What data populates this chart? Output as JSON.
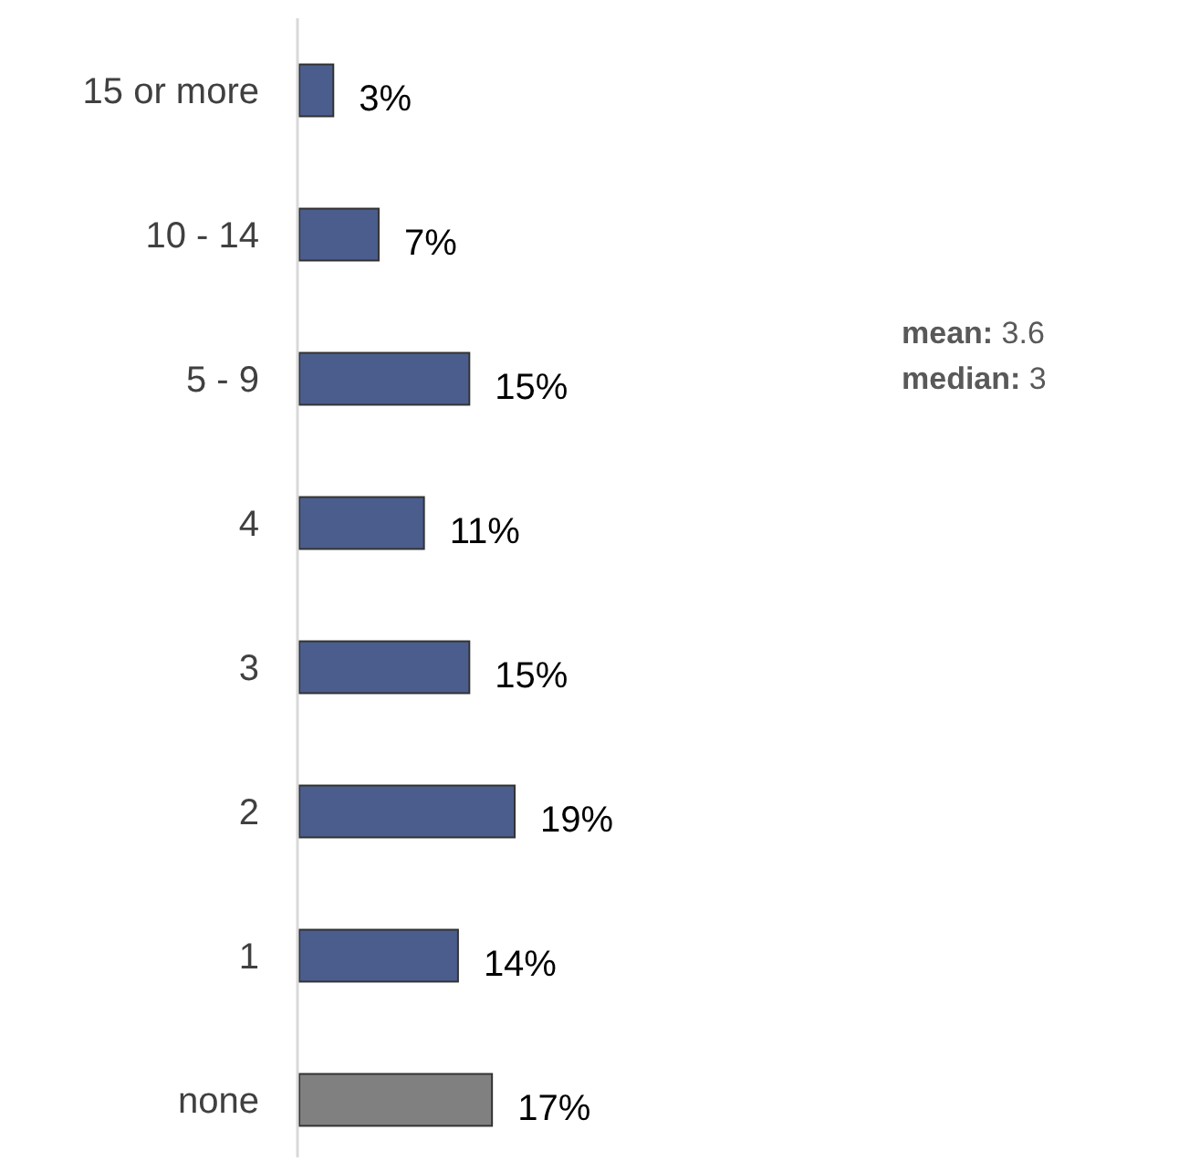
{
  "chart_data": {
    "type": "bar",
    "orientation": "horizontal",
    "categories": [
      "15 or more",
      "10 - 14",
      "5 - 9",
      "4",
      "3",
      "2",
      "1",
      "none"
    ],
    "values": [
      3,
      7,
      15,
      11,
      15,
      19,
      14,
      17
    ],
    "colors": [
      "#4a5d8c",
      "#4a5d8c",
      "#4a5d8c",
      "#4a5d8c",
      "#4a5d8c",
      "#4a5d8c",
      "#4a5d8c",
      "#808080"
    ],
    "data_labels": true,
    "value_labels": [
      "3%",
      "7%",
      "15%",
      "11%",
      "15%",
      "19%",
      "14%",
      "17%"
    ],
    "annotations": [
      "mean: 3.6",
      "median: 3"
    ]
  }
}
